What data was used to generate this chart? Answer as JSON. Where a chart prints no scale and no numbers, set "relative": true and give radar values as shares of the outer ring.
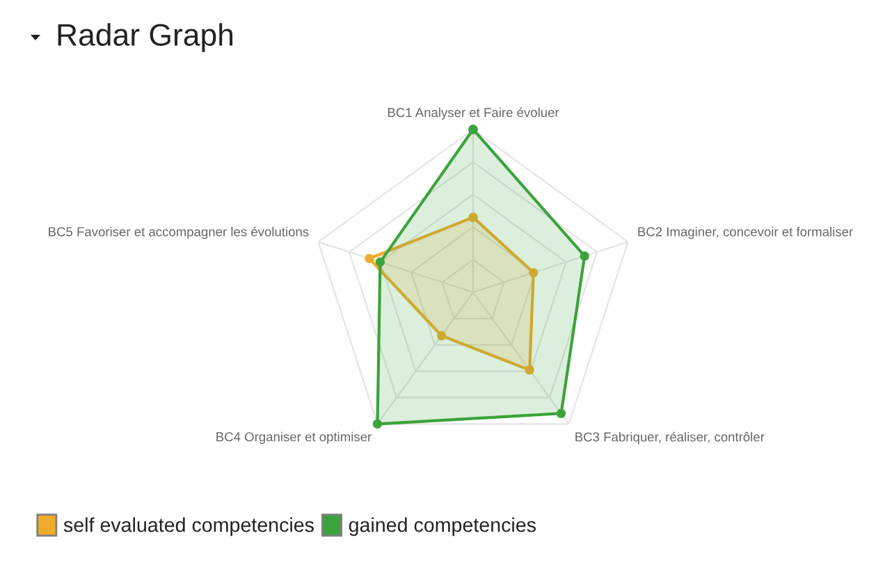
{
  "chart_data": {
    "type": "radar",
    "title": "Radar Graph",
    "categories": [
      "BC1 Analyser et Faire évoluer",
      "BC2 Imaginer, concevoir et formaliser",
      "BC3 Fabriquer, réaliser, contrôler",
      "BC4 Organiser et optimiser",
      "BC5 Favoriser et accompagner les évolutions"
    ],
    "relative": true,
    "series": [
      {
        "name": "self evaluated competencies",
        "color": "#eeab2c",
        "values": [
          0.46,
          0.39,
          0.59,
          0.33,
          0.67
        ]
      },
      {
        "name": "gained competencies",
        "color": "#3ba33b",
        "values": [
          1.0,
          0.72,
          0.92,
          1.0,
          0.6
        ]
      }
    ],
    "grid": true,
    "legend": "bottom left",
    "marker": "circle"
  }
}
